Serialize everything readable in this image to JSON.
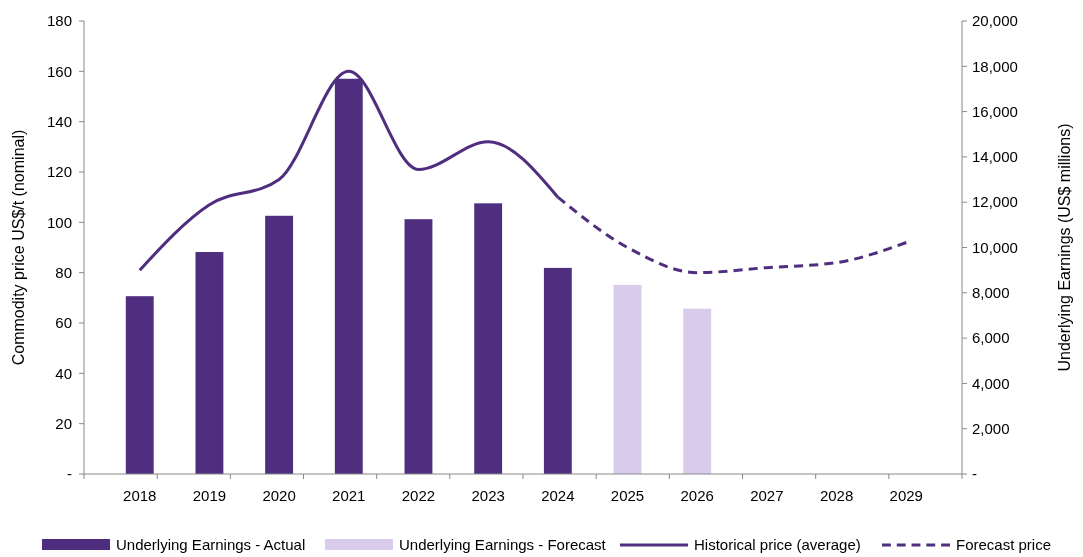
{
  "chart_data": {
    "type": "bar",
    "categories": [
      "2018",
      "2019",
      "2020",
      "2021",
      "2022",
      "2023",
      "2024",
      "2025",
      "2026",
      "2027",
      "2028",
      "2029"
    ],
    "ylabel": "Commodity price US$/t (nominal)",
    "y2label": "Underlying Earnings (US$ millions)",
    "ylim": [
      0,
      180
    ],
    "yticks": [
      {
        "value": 0,
        "label": "-"
      },
      20,
      40,
      60,
      80,
      100,
      120,
      140,
      160,
      180
    ],
    "y2lim": [
      0,
      20000
    ],
    "y2ticks": [
      {
        "value": 0,
        "label": "-"
      },
      {
        "value": 2000,
        "label": "2,000"
      },
      {
        "value": 4000,
        "label": "4,000"
      },
      {
        "value": 6000,
        "label": "6,000"
      },
      {
        "value": 8000,
        "label": "8,000"
      },
      {
        "value": 10000,
        "label": "10,000"
      },
      {
        "value": 12000,
        "label": "12,000"
      },
      {
        "value": 14000,
        "label": "14,000"
      },
      {
        "value": 16000,
        "label": "16,000"
      },
      {
        "value": 18000,
        "label": "18,000"
      },
      {
        "value": 20000,
        "label": "20,000"
      }
    ],
    "series": [
      {
        "name": "Underlying Earnings - Actual",
        "axis": "y2",
        "color": "#4f2d7f",
        "values": [
          7850,
          9800,
          11400,
          17450,
          11250,
          11950,
          9100,
          null,
          null,
          null,
          null,
          null
        ]
      },
      {
        "name": "Underlying Earnings - Forecast",
        "axis": "y2",
        "color": "#d9cbeb",
        "values": [
          null,
          null,
          null,
          null,
          null,
          null,
          null,
          8350,
          7300,
          null,
          null,
          null
        ]
      },
      {
        "name": "Historical price (average)",
        "type": "line",
        "color": "#4f2d7f",
        "line_style": "solid",
        "values": [
          81,
          107,
          117,
          160,
          121,
          132,
          110,
          null,
          null,
          null,
          null,
          null
        ]
      },
      {
        "name": "Forecast price",
        "type": "line",
        "color": "#4f2d7f",
        "line_style": "dashed",
        "values": [
          null,
          null,
          null,
          null,
          null,
          null,
          110,
          90,
          80,
          82,
          84,
          92
        ]
      }
    ],
    "legend": "bottom",
    "grid": false
  }
}
